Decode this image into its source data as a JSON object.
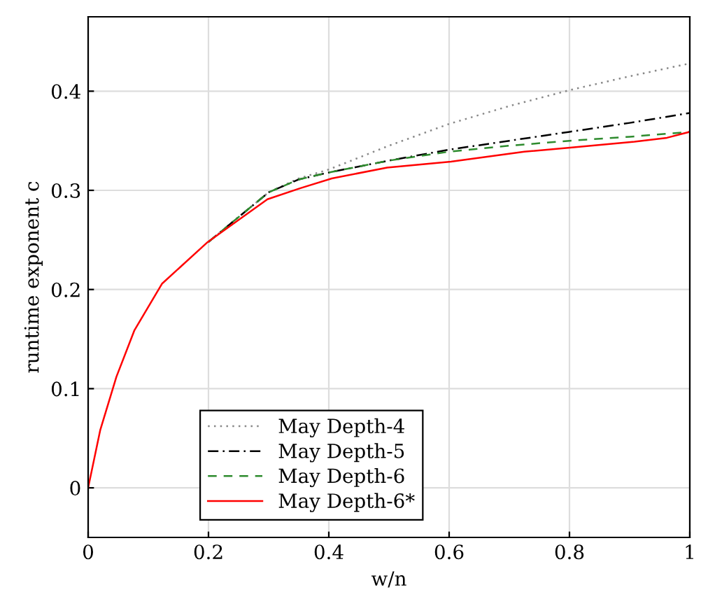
{
  "chart_data": {
    "type": "line",
    "xlabel": "w/n",
    "ylabel": "runtime exponent c",
    "xlim": [
      0,
      1
    ],
    "ylim": [
      -0.05,
      0.475
    ],
    "xticks": [
      0,
      0.2,
      0.4,
      0.6,
      0.8,
      1
    ],
    "yticks": [
      0,
      0.1,
      0.2,
      0.3,
      0.4
    ],
    "grid": true,
    "legend": "bottom left",
    "series": [
      {
        "name": "May Depth-4",
        "color": "#888888",
        "line_style": "dotted",
        "x": [
          0.2,
          0.3,
          0.35,
          0.4,
          0.5,
          0.6,
          0.7,
          0.8,
          0.9,
          1
        ],
        "values": [
          0.248,
          0.298,
          0.312,
          0.321,
          0.345,
          0.367,
          0.385,
          0.401,
          0.415,
          0.428
        ]
      },
      {
        "name": "May Depth-5",
        "color": "#000000",
        "line_style": "dashdot",
        "x": [
          0.2,
          0.3,
          0.35,
          0.4,
          0.5,
          0.6,
          0.7,
          0.8,
          0.9,
          1
        ],
        "values": [
          0.248,
          0.298,
          0.311,
          0.318,
          0.33,
          0.341,
          0.35,
          0.359,
          0.368,
          0.378
        ]
      },
      {
        "name": "May Depth-6",
        "color": "#2e8b2e",
        "line_style": "dashed",
        "x": [
          0.2,
          0.3,
          0.35,
          0.4,
          0.5,
          0.6,
          0.7,
          0.8,
          0.9,
          1
        ],
        "values": [
          0.248,
          0.298,
          0.311,
          0.318,
          0.33,
          0.339,
          0.345,
          0.35,
          0.354,
          0.359
        ]
      },
      {
        "name": "May Depth-6*",
        "color": "#ff0000",
        "line_style": "solid",
        "x": [
          0,
          0.02,
          0.047,
          0.077,
          0.123,
          0.199,
          0.298,
          0.352,
          0.405,
          0.497,
          0.603,
          0.725,
          0.801,
          0.908,
          0.962,
          1
        ],
        "values": [
          0,
          0.058,
          0.112,
          0.159,
          0.206,
          0.248,
          0.291,
          0.302,
          0.312,
          0.323,
          0.329,
          0.339,
          0.343,
          0.349,
          0.353,
          0.359
        ]
      }
    ]
  }
}
